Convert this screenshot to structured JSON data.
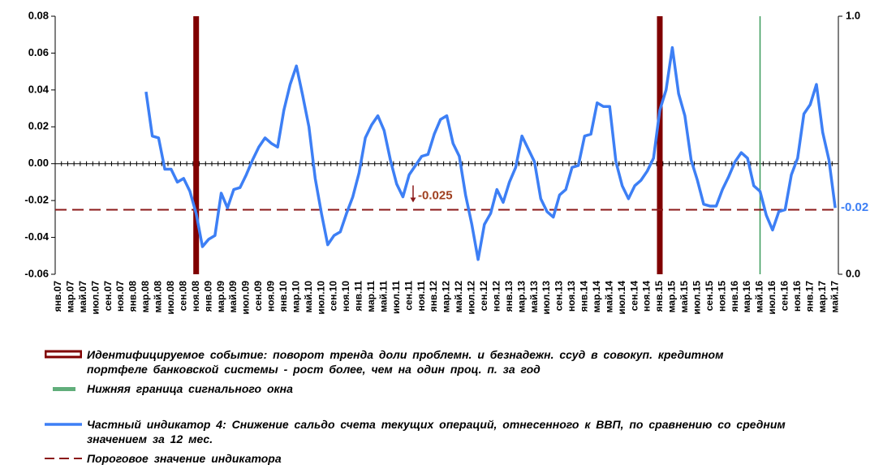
{
  "chart_data": {
    "type": "line",
    "categories": [
      "янв.07",
      null,
      "мар.07",
      null,
      "май.07",
      null,
      "июл.07",
      null,
      "сен.07",
      null,
      "ноя.07",
      null,
      "янв.08",
      null,
      "мар.08",
      null,
      "май.08",
      null,
      "июл.08",
      null,
      "сен.08",
      null,
      "ноя.08",
      null,
      "янв.09",
      null,
      "мар.09",
      null,
      "май.09",
      null,
      "июл.09",
      null,
      "сен.09",
      null,
      "ноя.09",
      null,
      "янв.10",
      null,
      "мар.10",
      null,
      "май.10",
      null,
      "июл.10",
      null,
      "сен.10",
      null,
      "ноя.10",
      null,
      "янв.11",
      null,
      "мар.11",
      null,
      "май.11",
      null,
      "июл.11",
      null,
      "сен.11",
      null,
      "ноя.11",
      null,
      "янв.12",
      null,
      "мар.12",
      null,
      "май.12",
      null,
      "июл.12",
      null,
      "сен.12",
      null,
      "ноя.12",
      null,
      "янв.13",
      null,
      "мар.13",
      null,
      "май.13",
      null,
      "июл.13",
      null,
      "сен.13",
      null,
      "ноя.13",
      null,
      "янв.14",
      null,
      "мар.14",
      null,
      "май.14",
      null,
      "июл.14",
      null,
      "сен.14",
      null,
      "ноя.14",
      null,
      "янв.15",
      null,
      "мар.15",
      null,
      "май.15",
      null,
      "июл.15",
      null,
      "сен.15",
      null,
      "ноя.15",
      null,
      "янв.16",
      null,
      "мар.16",
      null,
      "май.16",
      null,
      "июл.16",
      null,
      "сен.16",
      null,
      "ноя.16",
      null,
      "янв.17",
      null,
      "мар.17",
      null,
      "май.17"
    ],
    "ylim": [
      -0.06,
      0.08
    ],
    "yticks": [
      0.08,
      0.06,
      0.04,
      0.02,
      {
        "value": 0,
        "label": "0.00"
      },
      -0.02,
      -0.04,
      -0.06
    ],
    "y2lim": [
      0,
      1
    ],
    "y2ticks": [
      {
        "value": 0,
        "label": "0.0"
      },
      {
        "value": 1,
        "label": "1.0"
      }
    ],
    "series": [
      {
        "name": "Идентифицируемое  событие: поворот тренда доли проблемн. и безнадежн. ссуд  в совокуп. кредитном портфеле банковской системы  - рост более, чем  на один проц. п. за год",
        "kind": "bar",
        "axis": "y2",
        "color": "#800000",
        "values": [
          null,
          null,
          null,
          null,
          null,
          null,
          null,
          null,
          null,
          null,
          null,
          null,
          null,
          null,
          null,
          null,
          null,
          null,
          null,
          null,
          null,
          null,
          1,
          null,
          null,
          null,
          null,
          null,
          null,
          null,
          null,
          null,
          null,
          null,
          null,
          null,
          null,
          null,
          null,
          null,
          null,
          null,
          null,
          null,
          null,
          null,
          null,
          null,
          null,
          null,
          null,
          null,
          null,
          null,
          null,
          null,
          null,
          null,
          null,
          null,
          null,
          null,
          null,
          null,
          null,
          null,
          null,
          null,
          null,
          null,
          null,
          null,
          null,
          null,
          null,
          null,
          null,
          null,
          null,
          null,
          null,
          null,
          null,
          null,
          null,
          null,
          null,
          null,
          null,
          null,
          null,
          null,
          null,
          null,
          null,
          null,
          1,
          null,
          null,
          null,
          null,
          null,
          null,
          null,
          null,
          null,
          null,
          null,
          null,
          null,
          null,
          null,
          null,
          null,
          null,
          null,
          null,
          null,
          null,
          null,
          null,
          null,
          null,
          null,
          null
        ]
      },
      {
        "name": "Нижняя граница сигнального окна",
        "kind": "vline",
        "axis": "y2",
        "color": "#3a9a5a",
        "values": [
          null,
          null,
          null,
          null,
          null,
          null,
          null,
          null,
          null,
          null,
          null,
          null,
          null,
          null,
          null,
          null,
          null,
          null,
          null,
          null,
          null,
          null,
          null,
          null,
          null,
          null,
          null,
          null,
          null,
          null,
          null,
          null,
          null,
          null,
          null,
          null,
          null,
          null,
          null,
          null,
          null,
          null,
          null,
          null,
          null,
          null,
          null,
          null,
          null,
          null,
          null,
          null,
          null,
          null,
          null,
          null,
          null,
          null,
          null,
          null,
          null,
          null,
          null,
          null,
          null,
          null,
          null,
          null,
          null,
          null,
          null,
          null,
          null,
          null,
          null,
          null,
          null,
          null,
          null,
          null,
          null,
          null,
          null,
          null,
          null,
          null,
          null,
          null,
          null,
          null,
          null,
          null,
          null,
          null,
          null,
          null,
          null,
          null,
          null,
          null,
          null,
          null,
          null,
          null,
          null,
          null,
          null,
          null,
          null,
          null,
          null,
          null,
          1,
          null,
          null,
          null,
          null,
          null,
          null,
          null,
          null,
          null,
          null,
          null,
          null
        ]
      },
      {
        "name": "Частный индикатор 4: Снижение  сальдо  счета  текущих  операций,  отнесенного  к  ВВП,  по  сравнению  со средним значением   за 12 мес.",
        "kind": "line",
        "color": "#3d7ff5",
        "values": [
          null,
          null,
          null,
          null,
          null,
          null,
          null,
          null,
          null,
          null,
          null,
          null,
          null,
          null,
          0.039,
          0.015,
          0.014,
          -0.003,
          -0.003,
          -0.01,
          -0.008,
          -0.015,
          -0.027,
          -0.045,
          -0.041,
          -0.039,
          -0.016,
          -0.024,
          -0.014,
          -0.013,
          -0.006,
          0.002,
          0.009,
          0.014,
          0.011,
          0.009,
          0.029,
          0.043,
          0.053,
          0.037,
          0.02,
          -0.008,
          -0.027,
          -0.044,
          -0.039,
          -0.037,
          -0.027,
          -0.018,
          -0.005,
          0.014,
          0.021,
          0.026,
          0.018,
          0.002,
          -0.011,
          -0.018,
          -0.006,
          -0.001,
          0.004,
          0.005,
          0.016,
          0.024,
          0.026,
          0.011,
          0.004,
          -0.017,
          -0.033,
          -0.052,
          -0.033,
          -0.027,
          -0.014,
          -0.021,
          -0.01,
          -0.002,
          0.015,
          0.008,
          0.001,
          -0.019,
          -0.026,
          -0.029,
          -0.017,
          -0.014,
          -0.002,
          -0.001,
          0.015,
          0.016,
          0.033,
          0.031,
          0.031,
          0.001,
          -0.012,
          -0.019,
          -0.012,
          -0.009,
          -0.004,
          0.003,
          0.029,
          0.04,
          0.063,
          0.038,
          0.026,
          0.002,
          -0.009,
          -0.022,
          -0.023,
          -0.023,
          -0.014,
          -0.007,
          0.001,
          0.006,
          0.003,
          -0.012,
          -0.015,
          -0.028,
          -0.036,
          -0.026,
          -0.025,
          -0.006,
          0.003,
          0.027,
          0.032,
          0.043,
          0.017,
          0.002,
          -0.024
        ],
        "value_labels": [
          null,
          null,
          null,
          null,
          null,
          null,
          null,
          null,
          null,
          null,
          null,
          null,
          null,
          null,
          null,
          null,
          null,
          null,
          null,
          null,
          null,
          null,
          null,
          null,
          null,
          null,
          null,
          null,
          null,
          null,
          null,
          null,
          null,
          null,
          null,
          null,
          null,
          null,
          null,
          null,
          null,
          null,
          null,
          null,
          null,
          null,
          null,
          null,
          null,
          null,
          null,
          null,
          null,
          null,
          null,
          null,
          null,
          null,
          null,
          null,
          null,
          null,
          null,
          null,
          null,
          null,
          null,
          null,
          null,
          null,
          null,
          null,
          null,
          null,
          null,
          null,
          null,
          null,
          null,
          null,
          null,
          null,
          null,
          null,
          null,
          null,
          null,
          null,
          null,
          null,
          null,
          null,
          null,
          null,
          null,
          null,
          null,
          null,
          null,
          null,
          null,
          null,
          null,
          null,
          null,
          null,
          null,
          null,
          null,
          null,
          null,
          null,
          null,
          null,
          null,
          null,
          null,
          null,
          null,
          null,
          null,
          null,
          null,
          null,
          "-0.02"
        ]
      },
      {
        "name": "Пороговое значение  индикатора",
        "kind": "hline",
        "color": "#8b1a1a",
        "value": -0.025
      }
    ]
  }
}
